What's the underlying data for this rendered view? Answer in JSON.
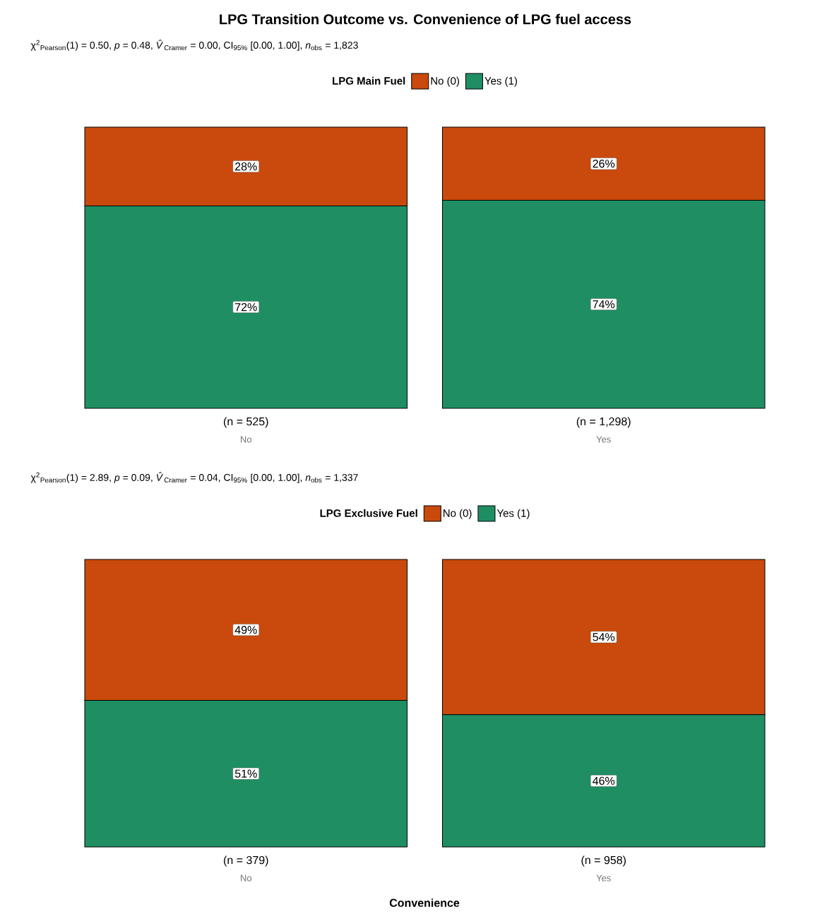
{
  "chart_data": [
    {
      "type": "bar",
      "stacked": true,
      "title": "LPG Transition Outcome vs. Convenience of LPG fuel access",
      "subtitle": "χ$^{2}$$_{Pearson}$(1) = 0.50, *p* = 0.48, *V̂*$_{Cramer}$ = 0.00, CI$_{95%}$ [0.00, 1.00], *n*$_{obs}$ = 1,823",
      "legend_title": "LPG Main Fuel",
      "legend": "top",
      "categories": [
        "No",
        "Yes"
      ],
      "tick_labels": "x",
      "series": [
        {
          "name": "Yes (1)",
          "color": "#1f8f63",
          "values": [
            72,
            74
          ],
          "value_labels": [
            "72%",
            "74%"
          ]
        },
        {
          "name": "No (0)",
          "color": "#c94a0c",
          "values": [
            28,
            26
          ],
          "value_labels": [
            "28%",
            "26%"
          ]
        }
      ],
      "annotations": [
        "(n = 525)",
        "(n = 1,298)"
      ]
    },
    {
      "type": "bar",
      "stacked": true,
      "subtitle": "χ$^{2}$$_{Pearson}$(1) = 2.89, *p* = 0.09, *V̂*$_{Cramer}$ = 0.04, CI$_{95%}$ [0.00, 1.00], *n*$_{obs}$ = 1,337",
      "legend_title": "LPG Exclusive Fuel",
      "legend": "top",
      "categories": [
        "No",
        "Yes"
      ],
      "xlabel": "Convenience",
      "tick_labels": "x",
      "series": [
        {
          "name": "Yes (1)",
          "color": "#1f8f63",
          "values": [
            51,
            46
          ],
          "value_labels": [
            "51%",
            "46%"
          ]
        },
        {
          "name": "No (0)",
          "color": "#c94a0c",
          "values": [
            49,
            54
          ],
          "value_labels": [
            "49%",
            "54%"
          ]
        }
      ],
      "annotations": [
        "(n = 379)",
        "(n = 958)"
      ]
    }
  ]
}
